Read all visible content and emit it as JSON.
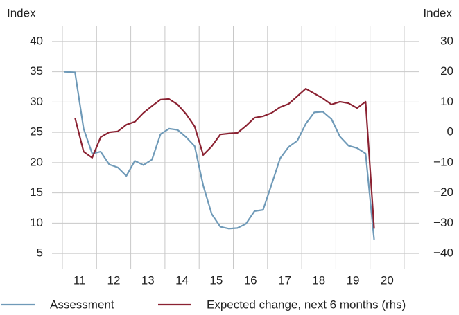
{
  "chart_data": {
    "type": "line",
    "y_label": "Index",
    "y2_label": "Index",
    "x": [
      10.54,
      10.87,
      11.12,
      11.37,
      11.62,
      11.87,
      12.12,
      12.37,
      12.62,
      12.87,
      13.12,
      13.37,
      13.62,
      13.87,
      14.12,
      14.37,
      14.62,
      14.87,
      15.12,
      15.37,
      15.62,
      15.87,
      16.12,
      16.37,
      16.62,
      16.87,
      17.12,
      17.37,
      17.62,
      17.87,
      18.12,
      18.37,
      18.62,
      18.87,
      19.12,
      19.37,
      19.62
    ],
    "series": [
      {
        "name": "Assessment",
        "color": "#6f9ab8",
        "values": [
          35,
          34.9,
          25.6,
          21.5,
          21.8,
          19.7,
          19.2,
          17.8,
          20.3,
          19.6,
          20.5,
          24.7,
          25.6,
          25.4,
          24.2,
          22.7,
          16.2,
          11.5,
          9.4,
          9.1,
          9.2,
          9.9,
          12,
          12.2,
          16.4,
          20.7,
          22.6,
          23.6,
          26.4,
          28.3,
          28.4,
          27.2,
          24.3,
          22.8,
          22.4,
          21.5,
          7.3
        ]
      },
      {
        "name": "Expected change, next 6 months (rhs)",
        "color": "#8b2232",
        "axis": "y2",
        "values": [
          null,
          4.8,
          -6.4,
          -8.4,
          -1.6,
          0,
          0.3,
          2.5,
          3.5,
          6.4,
          8.7,
          10.8,
          11,
          9.2,
          6,
          1.9,
          -7.5,
          -4.6,
          -0.7,
          -0.4,
          -0.2,
          2.1,
          4.8,
          5.3,
          6.4,
          8.3,
          9.4,
          11.9,
          14.4,
          12.8,
          11.2,
          9.2,
          10.1,
          9.6,
          8,
          10.1,
          -31.8
        ]
      }
    ],
    "xlim": [
      10.5,
      20.5
    ],
    "xticks": [
      11,
      12,
      13,
      14,
      15,
      16,
      17,
      18,
      19,
      20
    ],
    "ylim": [
      2.5,
      42.5
    ],
    "yticks": [
      5,
      10,
      15,
      20,
      25,
      30,
      35,
      40
    ],
    "y2lim": [
      -45,
      35
    ],
    "y2ticks": [
      {
        "value": -40,
        "label": "−40"
      },
      {
        "value": -30,
        "label": "−30"
      },
      {
        "value": -20,
        "label": "−20"
      },
      {
        "value": -10,
        "label": "−10"
      },
      0,
      10,
      20,
      30
    ],
    "grid": true
  }
}
